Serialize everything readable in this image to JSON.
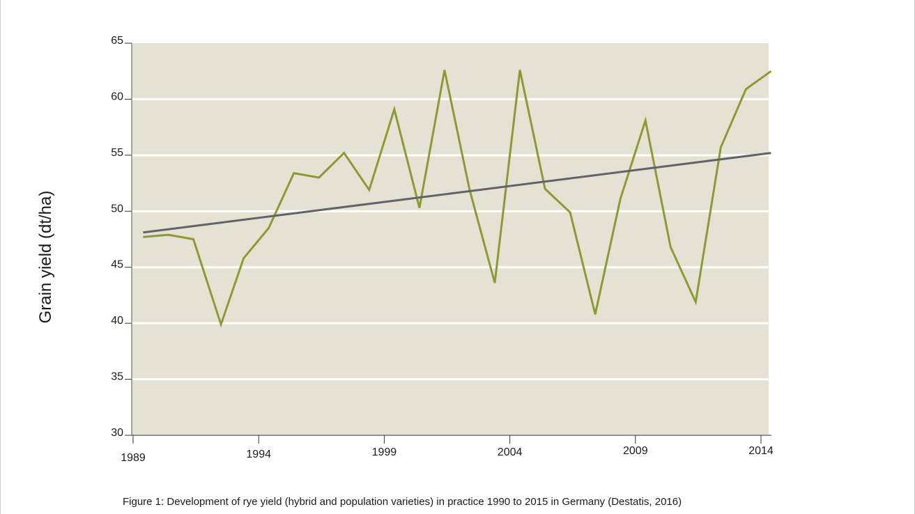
{
  "caption": "Figure 1: Development of rye yield (hybrid and population varieties) in practice 1990 to 2015 in Germany (Destatis, 2016)",
  "chart_data": {
    "type": "line",
    "title": "",
    "xlabel": "",
    "ylabel": "Grain yield (dt/ha)",
    "xlim": [
      1989,
      2014
    ],
    "ylim": [
      30,
      65
    ],
    "x_ticks": [
      1989,
      1994,
      1999,
      2004,
      2009,
      2014
    ],
    "y_ticks": [
      30,
      35,
      40,
      45,
      50,
      55,
      60,
      65
    ],
    "grid": "horizontal",
    "colors": {
      "plot_background": "#e5e2d3",
      "gridline": "#ffffff",
      "yield_line": "#8c9a35",
      "trend_line": "#60636a"
    },
    "series": [
      {
        "x": [
          1989.4,
          1990.4,
          1991.4,
          1992.5,
          1993.4,
          1994.4,
          1995.4,
          1996.4,
          1997.4,
          1998.4,
          1999.4,
          2000.4,
          2001.4,
          2002.4,
          2003.4,
          2004.4,
          2005.4,
          2006.4,
          2007.4,
          2008.4,
          2009.4,
          2010.4,
          2011.4,
          2012.4,
          2013.4,
          2014.4
        ],
        "values": [
          47.7,
          47.9,
          47.5,
          39.9,
          45.8,
          48.5,
          53.4,
          53.0,
          55.2,
          51.9,
          59.1,
          50.3,
          62.6,
          51.9,
          43.6,
          62.6,
          52.0,
          49.9,
          40.8,
          51.1,
          58.1,
          46.8,
          41.9,
          55.7,
          60.9,
          62.5
        ]
      },
      {
        "x": [
          1989.4,
          2014.4
        ],
        "values": [
          48.1,
          55.2
        ]
      }
    ]
  }
}
